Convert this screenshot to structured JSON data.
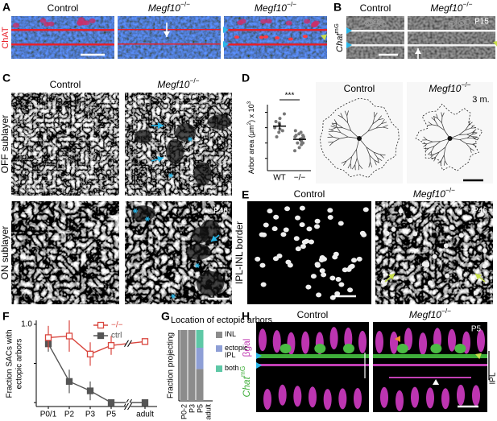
{
  "panels": {
    "A": {
      "letter": "A",
      "stain": "ChAT",
      "columns": [
        {
          "gene": "Control"
        },
        {
          "gene": "Megf10",
          "genotype": "−/−"
        },
        {
          "gene": "Megf10",
          "genotype": "−/−"
        }
      ]
    },
    "B": {
      "letter": "B",
      "reporter": {
        "gene": "Chat",
        "genotype": "mG"
      },
      "age": "P15",
      "columns": [
        {
          "gene": "Control"
        },
        {
          "gene": "Megf10",
          "genotype": "−/−"
        }
      ]
    },
    "C": {
      "letter": "C",
      "rows": [
        "OFF sublayer",
        "ON sublayer"
      ],
      "age": "P46",
      "columns": [
        {
          "gene": "Control"
        },
        {
          "gene": "Megf10",
          "genotype": "−/−"
        }
      ]
    },
    "D": {
      "letter": "D",
      "age": "3 m.",
      "columns": [
        {
          "gene": "Control"
        },
        {
          "gene": "Megf10",
          "genotype": "−/−"
        }
      ]
    },
    "E": {
      "letter": "E",
      "row": "IPL-INL border",
      "age": "P46",
      "columns": [
        {
          "gene": "Control"
        },
        {
          "gene": "Megf10",
          "genotype": "−/−"
        }
      ]
    },
    "F": {
      "letter": "F"
    },
    "G": {
      "letter": "G"
    },
    "H": {
      "letter": "H",
      "age": "P5",
      "layer": "IPL",
      "stains": [
        {
          "gene": "Chat",
          "genotype": "mG"
        },
        {
          "gene": "βgal"
        }
      ],
      "columns": [
        {
          "gene": "Control"
        },
        {
          "gene": "Megf10",
          "genotype": "−/−"
        }
      ]
    }
  },
  "chart_data": [
    {
      "type": "dot",
      "ylabel": [
        "Arbor area (μm",
        "2",
        ") x 10",
        "3"
      ],
      "categories": [
        "WT",
        "−/−"
      ],
      "ylim": [
        2,
        45
      ],
      "yticks": [
        10,
        20,
        30,
        40
      ],
      "significance": "***",
      "groups": [
        {
          "values": [
            39,
            36,
            34,
            33,
            32,
            30,
            29,
            28,
            27,
            24
          ],
          "mean": 31,
          "sem": 2
        },
        {
          "values": [
            28,
            27,
            26,
            25,
            25,
            24,
            24,
            23,
            23,
            22,
            21,
            20,
            20,
            19,
            17,
            15
          ],
          "mean": 22.4,
          "sem": 1
        }
      ]
    },
    {
      "type": "line",
      "ylabel": [
        "Fraction SACs with",
        "ectopic arbors"
      ],
      "categories": [
        "P0/1",
        "P2",
        "P3",
        "P5",
        "adult"
      ],
      "ylim": [
        -0.05,
        1.05
      ],
      "yticks": [
        0,
        0.5,
        {
          "value": 1,
          "label": "1.0"
        }
      ],
      "axis_break": true,
      "series": [
        {
          "name": "ctrl",
          "color": "#555555",
          "marker": "filled",
          "values": [
            0.75,
            0.27,
            0.15,
            0,
            0
          ],
          "errors": [
            0.1,
            0.15,
            0.12,
            0.02,
            0.02
          ]
        },
        {
          "name": "−/−",
          "color": "#d9463e",
          "marker": "open",
          "values": [
            0.83,
            0.85,
            0.62,
            0.73,
            0.78
          ],
          "errors": [
            0.15,
            0.2,
            0.15,
            0.12,
            0.03
          ]
        }
      ]
    },
    {
      "type": "stacked_bar",
      "title": "Location of ectopic arbors",
      "ylabel": "Fraction projecting",
      "categories": [
        "P0-2",
        "P3",
        "P5",
        "adult"
      ],
      "ylim": [
        0,
        1
      ],
      "series": [
        {
          "name": "INL",
          "color": "#8c8c8c",
          "values": [
            1,
            1,
            0.45,
            null
          ]
        },
        {
          "name": "ectopic IPL",
          "color": "#8e9fd6",
          "values": [
            0,
            0,
            0.3,
            null
          ]
        },
        {
          "name": "both",
          "color": "#5ec8a6",
          "values": [
            0,
            0,
            0.25,
            null
          ]
        }
      ]
    }
  ]
}
